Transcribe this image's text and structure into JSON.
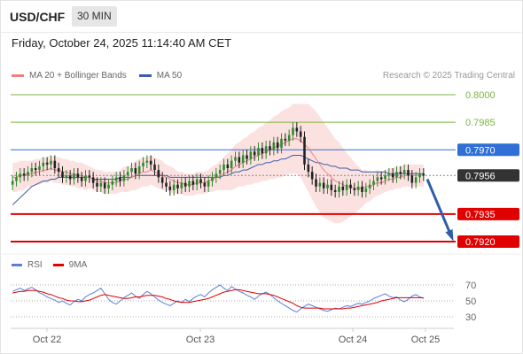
{
  "header": {
    "symbol": "USD/CHF",
    "timeframe": "30 MIN"
  },
  "datetime": "Friday, October 24, 2025 11:14:40 AM CET",
  "legend": {
    "ma20": {
      "label": "MA 20 + Bollinger Bands",
      "color": "#f08080"
    },
    "ma50": {
      "label": "MA 50",
      "color": "#3a5fa8"
    }
  },
  "credit": "Research © 2025 Trading Central",
  "rsi_legend": {
    "rsi": {
      "label": "RSI",
      "color": "#5b7fd6"
    },
    "ma9": {
      "label": "9MA",
      "color": "#e00000"
    }
  },
  "chart_data": [
    {
      "type": "candlestick",
      "pair": "USD/CHF",
      "timeframe": "30 MIN",
      "x_ticks": [
        "Oct 22",
        "Oct 23",
        "Oct 24",
        "Oct 25"
      ],
      "levels": [
        {
          "label": "0.8000",
          "value": 0.8,
          "kind": "resistance",
          "color": "#7cb342"
        },
        {
          "label": "0.7985",
          "value": 0.7985,
          "kind": "resistance",
          "color": "#7cb342"
        },
        {
          "label": "0.7970",
          "value": 0.797,
          "kind": "pivot",
          "color": "#2f6fd6"
        },
        {
          "label": "0.7956",
          "value": 0.7956,
          "kind": "last",
          "color": "#333333"
        },
        {
          "label": "0.7935",
          "value": 0.7935,
          "kind": "support",
          "color": "#e00000"
        },
        {
          "label": "0.7920",
          "value": 0.792,
          "kind": "support",
          "color": "#e00000"
        }
      ],
      "projection": {
        "from": 0.7954,
        "to": 0.792,
        "color": "#2f5da8"
      },
      "closes": [
        0.7953,
        0.7955,
        0.7957,
        0.7956,
        0.7958,
        0.796,
        0.7959,
        0.7961,
        0.7963,
        0.7962,
        0.7964,
        0.796,
        0.7958,
        0.7955,
        0.7956,
        0.7954,
        0.7957,
        0.7955,
        0.7953,
        0.7956,
        0.7955,
        0.7952,
        0.795,
        0.7952,
        0.7949,
        0.7951,
        0.7953,
        0.7955,
        0.7953,
        0.7956,
        0.7958,
        0.796,
        0.7957,
        0.7961,
        0.7963,
        0.7964,
        0.7962,
        0.7959,
        0.7955,
        0.7952,
        0.795,
        0.7948,
        0.7951,
        0.7949,
        0.7952,
        0.795,
        0.7953,
        0.7951,
        0.7954,
        0.7952,
        0.795,
        0.7953,
        0.7955,
        0.7957,
        0.7959,
        0.7962,
        0.796,
        0.7964,
        0.7966,
        0.7963,
        0.7967,
        0.7965,
        0.7969,
        0.7967,
        0.7971,
        0.7968,
        0.7972,
        0.797,
        0.7974,
        0.7971,
        0.7976,
        0.7975,
        0.7978,
        0.7982,
        0.798,
        0.7977,
        0.7962,
        0.7958,
        0.7954,
        0.795,
        0.7952,
        0.7949,
        0.7951,
        0.7948,
        0.7947,
        0.795,
        0.7948,
        0.7951,
        0.7949,
        0.7948,
        0.795,
        0.7947,
        0.7949,
        0.7951,
        0.7953,
        0.7955,
        0.7954,
        0.7956,
        0.7957,
        0.7955,
        0.7958,
        0.7957,
        0.7959,
        0.7956,
        0.7952,
        0.7955,
        0.7957,
        0.7956
      ],
      "ma50": [
        0.794,
        0.7942,
        0.7944,
        0.7946,
        0.7948,
        0.795,
        0.7951,
        0.7952,
        0.7953,
        0.7953,
        0.7954,
        0.7954,
        0.7955,
        0.7955,
        0.7955,
        0.7955,
        0.7955,
        0.7955,
        0.7955,
        0.7955,
        0.7955,
        0.7954,
        0.7954,
        0.7954,
        0.7954,
        0.7954,
        0.7954,
        0.7954,
        0.7955,
        0.7955,
        0.7955,
        0.7955,
        0.7956,
        0.7956,
        0.7956,
        0.7956,
        0.7956,
        0.7956,
        0.7956,
        0.7956,
        0.7956,
        0.7955,
        0.7955,
        0.7955,
        0.7955,
        0.7955,
        0.7955,
        0.7955,
        0.7955,
        0.7955,
        0.7955,
        0.7955,
        0.7955,
        0.7955,
        0.7955,
        0.7956,
        0.7956,
        0.7957,
        0.7958,
        0.7958,
        0.7959,
        0.7959,
        0.796,
        0.7961,
        0.7962,
        0.7962,
        0.7963,
        0.7963,
        0.7964,
        0.7964,
        0.7965,
        0.7965,
        0.7966,
        0.7967,
        0.7967,
        0.7967,
        0.7966,
        0.7965,
        0.7964,
        0.7963,
        0.7963,
        0.7962,
        0.7962,
        0.7961,
        0.7961,
        0.796,
        0.796,
        0.796,
        0.7959,
        0.7959,
        0.7959,
        0.7958,
        0.7958,
        0.7958,
        0.7958,
        0.7958,
        0.7958,
        0.7958,
        0.7957,
        0.7957,
        0.7957,
        0.7957,
        0.7957,
        0.7957,
        0.7957,
        0.7957,
        0.7957,
        0.7957
      ],
      "ma20": [
        0.7955,
        0.7955,
        0.7956,
        0.7956,
        0.7957,
        0.7957,
        0.7958,
        0.7958,
        0.7959,
        0.7959,
        0.796,
        0.7959,
        0.7959,
        0.7958,
        0.7958,
        0.7957,
        0.7957,
        0.7956,
        0.7956,
        0.7955,
        0.7955,
        0.7954,
        0.7953,
        0.7953,
        0.7952,
        0.7952,
        0.7952,
        0.7952,
        0.7953,
        0.7954,
        0.7954,
        0.7955,
        0.7956,
        0.7957,
        0.7958,
        0.7958,
        0.7959,
        0.7958,
        0.7957,
        0.7956,
        0.7955,
        0.7954,
        0.7953,
        0.7952,
        0.7952,
        0.7951,
        0.7951,
        0.7951,
        0.7952,
        0.7952,
        0.7952,
        0.7953,
        0.7954,
        0.7955,
        0.7956,
        0.7957,
        0.7958,
        0.7959,
        0.7961,
        0.7962,
        0.7963,
        0.7964,
        0.7965,
        0.7966,
        0.7967,
        0.7968,
        0.7969,
        0.797,
        0.7971,
        0.7972,
        0.7973,
        0.7974,
        0.7975,
        0.7976,
        0.7976,
        0.7975,
        0.7973,
        0.7971,
        0.7968,
        0.7965,
        0.7962,
        0.7959,
        0.7957,
        0.7955,
        0.7953,
        0.7952,
        0.7951,
        0.795,
        0.795,
        0.7949,
        0.7949,
        0.7949,
        0.795,
        0.795,
        0.7951,
        0.7952,
        0.7952,
        0.7953,
        0.7954,
        0.7954,
        0.7955,
        0.7955,
        0.7956,
        0.7956,
        0.7956,
        0.7956,
        0.7956,
        0.7956
      ],
      "bb_halfwidth": [
        0.0008,
        0.0008,
        0.0008,
        0.0008,
        0.0007,
        0.0007,
        0.0007,
        0.0007,
        0.0007,
        0.0007,
        0.0007,
        0.0007,
        0.0007,
        0.0007,
        0.0007,
        0.0007,
        0.0007,
        0.0007,
        0.0007,
        0.0007,
        0.0006,
        0.0006,
        0.0006,
        0.0006,
        0.0006,
        0.0006,
        0.0006,
        0.0006,
        0.0006,
        0.0007,
        0.0007,
        0.0007,
        0.0008,
        0.0008,
        0.0008,
        0.0008,
        0.0008,
        0.0008,
        0.0008,
        0.0008,
        0.0007,
        0.0007,
        0.0007,
        0.0006,
        0.0006,
        0.0006,
        0.0006,
        0.0006,
        0.0006,
        0.0006,
        0.0006,
        0.0006,
        0.0007,
        0.0007,
        0.0008,
        0.0009,
        0.001,
        0.0011,
        0.0012,
        0.0012,
        0.0013,
        0.0013,
        0.0014,
        0.0014,
        0.0015,
        0.0015,
        0.0016,
        0.0016,
        0.0017,
        0.0017,
        0.0018,
        0.0018,
        0.0018,
        0.0019,
        0.0019,
        0.002,
        0.0022,
        0.0024,
        0.0025,
        0.0026,
        0.0026,
        0.0026,
        0.0025,
        0.0024,
        0.0023,
        0.0022,
        0.002,
        0.0018,
        0.0016,
        0.0014,
        0.0012,
        0.001,
        0.0009,
        0.0008,
        0.0007,
        0.0007,
        0.0006,
        0.0006,
        0.0006,
        0.0006,
        0.0006,
        0.0006,
        0.0006,
        0.0006,
        0.0006,
        0.0006,
        0.0006,
        0.0006
      ],
      "ylim": [
        0.791,
        0.801
      ]
    },
    {
      "type": "line",
      "name": "RSI panel",
      "ticks": [
        70,
        50,
        30
      ],
      "ylim": [
        20,
        80
      ],
      "rsi": [
        62,
        64,
        66,
        63,
        65,
        67,
        64,
        60,
        58,
        55,
        53,
        51,
        48,
        50,
        47,
        45,
        49,
        52,
        50,
        55,
        58,
        60,
        63,
        66,
        59,
        52,
        48,
        46,
        50,
        54,
        57,
        60,
        56,
        53,
        58,
        62,
        59,
        55,
        51,
        48,
        46,
        44,
        47,
        50,
        48,
        52,
        49,
        53,
        56,
        58,
        55,
        60,
        64,
        67,
        70,
        66,
        63,
        68,
        65,
        62,
        60,
        57,
        55,
        52,
        56,
        59,
        61,
        58,
        54,
        50,
        47,
        44,
        41,
        38,
        36,
        40,
        43,
        46,
        44,
        42,
        40,
        38,
        37,
        39,
        41,
        40,
        42,
        44,
        43,
        45,
        47,
        46,
        48,
        50,
        53,
        55,
        57,
        59,
        56,
        54,
        55,
        51,
        49,
        52,
        56,
        58,
        55,
        53
      ],
      "ma9": [
        60,
        61,
        62,
        62,
        63,
        63,
        63,
        62,
        61,
        59,
        58,
        56,
        54,
        53,
        51,
        50,
        50,
        49,
        49,
        50,
        51,
        53,
        55,
        57,
        58,
        57,
        56,
        55,
        54,
        53,
        53,
        54,
        55,
        55,
        56,
        57,
        57,
        57,
        56,
        55,
        53,
        52,
        50,
        49,
        48,
        48,
        48,
        49,
        50,
        51,
        52,
        53,
        55,
        57,
        59,
        61,
        62,
        63,
        64,
        64,
        63,
        62,
        61,
        60,
        59,
        59,
        59,
        58,
        57,
        55,
        53,
        51,
        49,
        47,
        44,
        42,
        41,
        41,
        41,
        41,
        41,
        40,
        40,
        40,
        40,
        40,
        40,
        41,
        41,
        42,
        43,
        44,
        45,
        46,
        47,
        48,
        50,
        51,
        52,
        53,
        54,
        54,
        54,
        54,
        54,
        54,
        54,
        54
      ]
    }
  ]
}
